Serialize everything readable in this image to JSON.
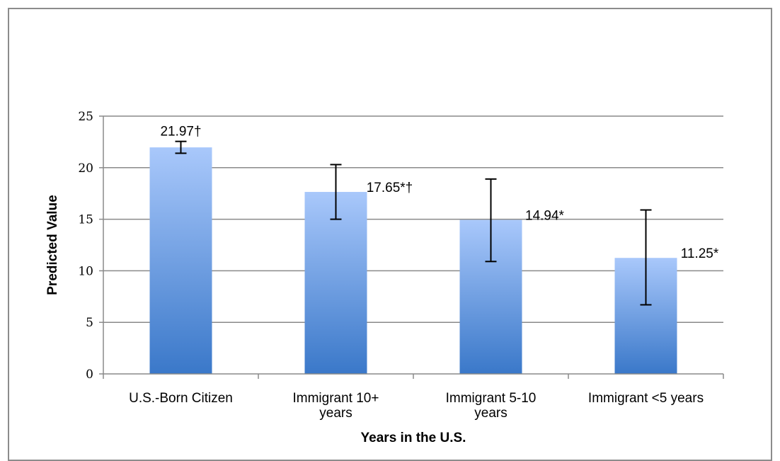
{
  "chart_data": {
    "type": "bar",
    "title": "",
    "xlabel": "Years in the U.S.",
    "ylabel": "Predicted Value",
    "ylim": [
      0,
      25
    ],
    "yticks": [
      0,
      5,
      10,
      15,
      20,
      25
    ],
    "grid": true,
    "legend": "none",
    "categories": [
      [
        "U.S.-Born Citizen"
      ],
      [
        "Immigrant 10+",
        "years"
      ],
      [
        "Immigrant 5-10",
        "years"
      ],
      [
        "Immigrant <5 years"
      ]
    ],
    "values": [
      21.97,
      17.65,
      14.94,
      11.25
    ],
    "data_labels": [
      "21.97†",
      "17.65*†",
      "14.94*",
      "11.25*"
    ],
    "error_low": [
      21.4,
      15.0,
      10.9,
      6.7
    ],
    "error_high": [
      22.55,
      20.3,
      18.9,
      15.9
    ],
    "bar_color_top": "#a9c8fb",
    "bar_color_bottom": "#3a78c9"
  }
}
